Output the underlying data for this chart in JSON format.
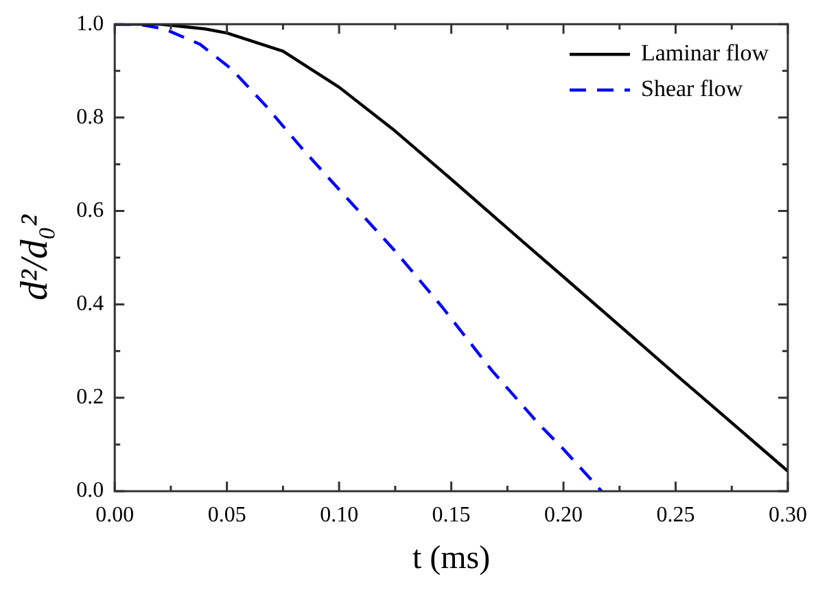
{
  "chart_data": {
    "type": "line",
    "xlabel": "t (ms)",
    "ylabel": "d²/d₀²",
    "xlim": [
      0,
      0.3
    ],
    "xticks": [
      {
        "value": 0,
        "label": "0.00"
      },
      {
        "value": 0.05,
        "label": "0.05"
      },
      {
        "value": 0.1,
        "label": "0.10"
      },
      {
        "value": 0.15,
        "label": "0.15"
      },
      {
        "value": 0.2,
        "label": "0.20"
      },
      {
        "value": 0.25,
        "label": "0.25"
      },
      {
        "value": 0.3,
        "label": "0.30"
      }
    ],
    "ylim": [
      0,
      1
    ],
    "yticks": [
      {
        "value": 0,
        "label": "0.0"
      },
      {
        "value": 0.2,
        "label": "0.2"
      },
      {
        "value": 0.4,
        "label": "0.4"
      },
      {
        "value": 0.6,
        "label": "0.6"
      },
      {
        "value": 0.8,
        "label": "0.8"
      },
      {
        "value": 1,
        "label": "1.0"
      }
    ],
    "grid": false,
    "legend": "top right",
    "marker": "none",
    "series": [
      {
        "name": "Laminar flow",
        "color": "#000000",
        "line_style": "solid",
        "x": [
          0,
          0.02,
          0.04,
          0.05,
          0.075,
          0.1,
          0.125,
          0.15,
          0.175,
          0.2,
          0.25,
          0.3
        ],
        "values": [
          1,
          1,
          0.99,
          0.981,
          0.942,
          0.865,
          0.771,
          0.668,
          0.563,
          0.459,
          0.25,
          0.043
        ]
      },
      {
        "name": "Shear flow",
        "color": "#0000ff",
        "line_style": "dashed",
        "x": [
          0,
          0.01,
          0.022,
          0.038,
          0.052,
          0.067,
          0.084,
          0.103,
          0.125,
          0.146,
          0.168,
          0.189,
          0.2,
          0.217
        ],
        "values": [
          1,
          1,
          0.99,
          0.957,
          0.904,
          0.827,
          0.731,
          0.63,
          0.514,
          0.394,
          0.259,
          0.144,
          0.09,
          0
        ]
      }
    ]
  }
}
